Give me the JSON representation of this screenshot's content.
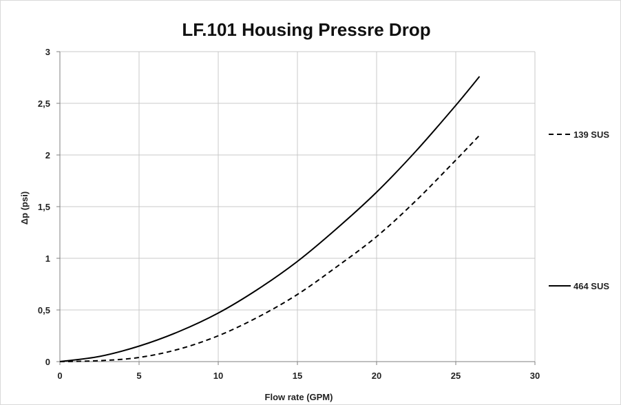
{
  "chart_data": {
    "type": "line",
    "title": "LF.101 Housing Pressre Drop",
    "xlabel": "Flow rate (GPM)",
    "ylabel": "Δp (psi)",
    "xlim": [
      0,
      30
    ],
    "ylim": [
      0,
      3
    ],
    "x_ticks": [
      "0",
      "5",
      "10",
      "15",
      "20",
      "25",
      "30"
    ],
    "y_ticks": [
      "0",
      "0,5",
      "1",
      "1,5",
      "2",
      "2,5",
      "3"
    ],
    "grid": true,
    "legend_position": "right",
    "series": [
      {
        "name": "139 SUS",
        "style": "dashed",
        "color": "#000000",
        "x": [
          0,
          2.5,
          5,
          7.5,
          10,
          12.5,
          15,
          17.5,
          20,
          22.5,
          25,
          26.5
        ],
        "y": [
          0,
          0.009,
          0.04,
          0.12,
          0.25,
          0.43,
          0.65,
          0.92,
          1.21,
          1.56,
          1.95,
          2.19
        ]
      },
      {
        "name": "464 SUS",
        "style": "solid",
        "color": "#000000",
        "x": [
          0,
          2.5,
          5,
          7.5,
          10,
          12.5,
          15,
          17.5,
          20,
          22.5,
          25,
          26.5
        ],
        "y": [
          0,
          0.05,
          0.15,
          0.29,
          0.47,
          0.7,
          0.97,
          1.29,
          1.64,
          2.04,
          2.48,
          2.76
        ]
      }
    ]
  }
}
